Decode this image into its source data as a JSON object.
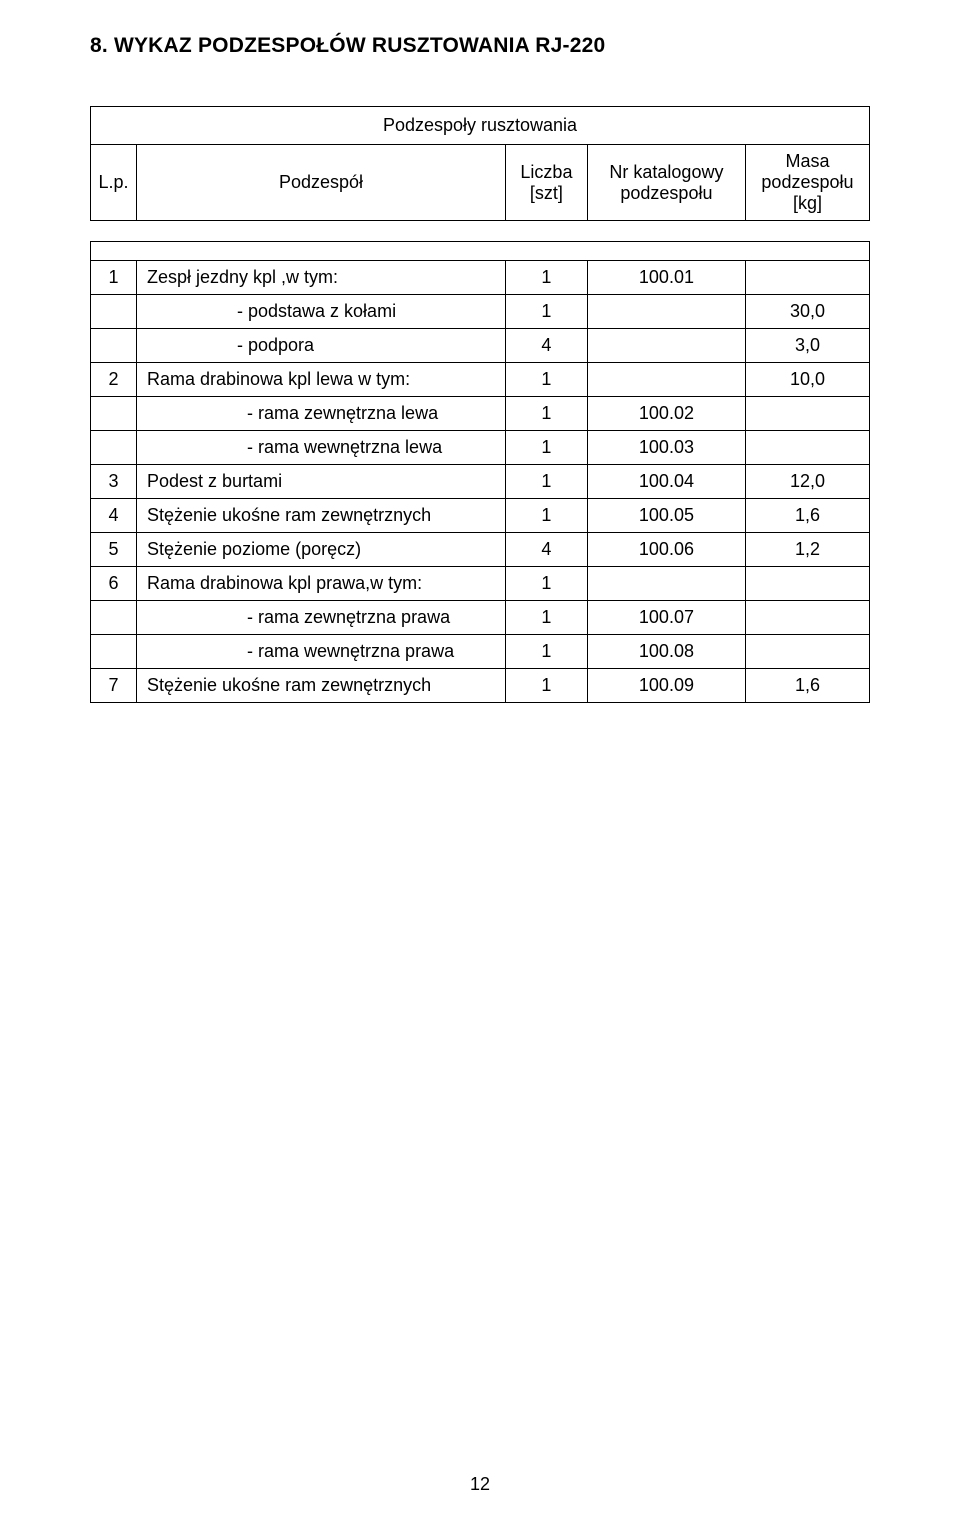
{
  "section_title": "8. WYKAZ PODZESPOŁÓW RUSZTOWANIA RJ-220",
  "page_number": "12",
  "table": {
    "caption": "Podzespoły rusztowania",
    "columns": {
      "lp": "L.p.",
      "name": "Podzespół",
      "qty_line1": "Liczba",
      "qty_line2": "[szt]",
      "cat_line1": "Nr katalogowy",
      "cat_line2": "podzespołu",
      "mass_line1": "Masa",
      "mass_line2": "podzespołu",
      "mass_line3": "[kg]"
    },
    "rows": [
      {
        "lp": "1",
        "name": "Zespł jezdny kpl ,w tym:",
        "indent": 0,
        "qty": "1",
        "cat": "100.01",
        "mass": ""
      },
      {
        "lp": "",
        "name": "- podstawa z kołami",
        "indent": 1,
        "qty": "1",
        "cat": "",
        "mass": "30,0"
      },
      {
        "lp": "",
        "name": "- podpora",
        "indent": 1,
        "qty": "4",
        "cat": "",
        "mass": "3,0"
      },
      {
        "lp": "2",
        "name": "Rama drabinowa kpl lewa w tym:",
        "indent": 0,
        "qty": "1",
        "cat": "",
        "mass": "10,0"
      },
      {
        "lp": "",
        "name": "- rama zewnętrzna lewa",
        "indent": 2,
        "qty": "1",
        "cat": "100.02",
        "mass": ""
      },
      {
        "lp": "",
        "name": "- rama wewnętrzna lewa",
        "indent": 2,
        "qty": "1",
        "cat": "100.03",
        "mass": ""
      },
      {
        "lp": "3",
        "name": "Podest z burtami",
        "indent": 0,
        "qty": "1",
        "cat": "100.04",
        "mass": "12,0"
      },
      {
        "lp": "4",
        "name": "Stężenie ukośne ram zewnętrznych",
        "indent": 0,
        "qty": "1",
        "cat": "100.05",
        "mass": "1,6"
      },
      {
        "lp": "5",
        "name": "Stężenie poziome (poręcz)",
        "indent": 0,
        "qty": "4",
        "cat": "100.06",
        "mass": "1,2"
      },
      {
        "lp": "6",
        "name": "Rama drabinowa kpl prawa,w tym:",
        "indent": 0,
        "qty": "1",
        "cat": "",
        "mass": ""
      },
      {
        "lp": "",
        "name": "- rama zewnętrzna prawa",
        "indent": 2,
        "qty": "1",
        "cat": "100.07",
        "mass": ""
      },
      {
        "lp": "",
        "name": "- rama wewnętrzna prawa",
        "indent": 2,
        "qty": "1",
        "cat": "100.08",
        "mass": ""
      },
      {
        "lp": "7",
        "name": "Stężenie ukośne ram zewnętrznych",
        "indent": 0,
        "qty": "1",
        "cat": "100.09",
        "mass": "1,6"
      }
    ]
  }
}
